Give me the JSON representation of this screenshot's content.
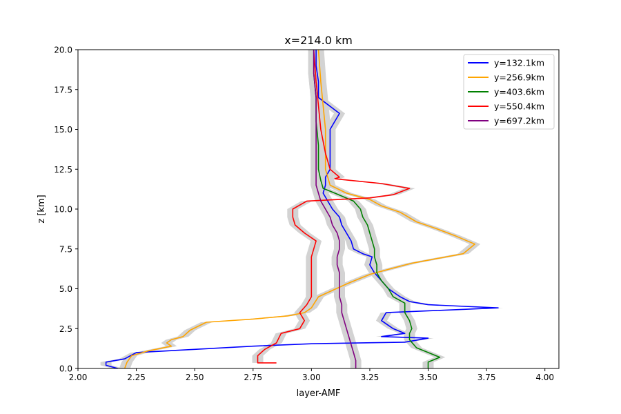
{
  "chart_data": {
    "type": "line",
    "title": "x=214.0 km",
    "xlabel": "layer-AMF",
    "ylabel": "z [km]",
    "xlim": [
      2.0,
      4.06
    ],
    "ylim": [
      0.0,
      20.0
    ],
    "xticks": [
      "2.00",
      "2.25",
      "2.50",
      "2.75",
      "3.00",
      "3.25",
      "3.50",
      "3.75",
      "4.00"
    ],
    "yticks": [
      "0.0",
      "2.5",
      "5.0",
      "7.5",
      "10.0",
      "12.5",
      "15.0",
      "17.5",
      "20.0"
    ],
    "grid": false,
    "legend_position": "top-right",
    "uncertainty_band_color": "#d3d3d3",
    "series": [
      {
        "name": "y=132.1km",
        "color": "#0000ff",
        "points": [
          [
            2.17,
            0.0
          ],
          [
            2.12,
            0.2
          ],
          [
            2.12,
            0.4
          ],
          [
            2.2,
            0.6
          ],
          [
            2.25,
            1.0
          ],
          [
            2.5,
            1.2
          ],
          [
            2.75,
            1.4
          ],
          [
            3.0,
            1.55
          ],
          [
            3.4,
            1.65
          ],
          [
            3.5,
            1.9
          ],
          [
            3.3,
            2.0
          ],
          [
            3.4,
            2.2
          ],
          [
            3.35,
            2.5
          ],
          [
            3.3,
            3.0
          ],
          [
            3.32,
            3.5
          ],
          [
            3.8,
            3.8
          ],
          [
            3.5,
            4.0
          ],
          [
            3.42,
            4.2
          ],
          [
            3.38,
            4.5
          ],
          [
            3.33,
            5.0
          ],
          [
            3.3,
            5.5
          ],
          [
            3.27,
            6.0
          ],
          [
            3.25,
            6.5
          ],
          [
            3.26,
            7.0
          ],
          [
            3.22,
            7.2
          ],
          [
            3.18,
            7.5
          ],
          [
            3.17,
            8.0
          ],
          [
            3.15,
            8.5
          ],
          [
            3.13,
            9.0
          ],
          [
            3.12,
            9.5
          ],
          [
            3.09,
            10.0
          ],
          [
            3.07,
            10.5
          ],
          [
            3.05,
            11.0
          ],
          [
            3.06,
            11.5
          ],
          [
            3.06,
            12.0
          ],
          [
            3.08,
            12.5
          ],
          [
            3.08,
            13.0
          ],
          [
            3.08,
            14.0
          ],
          [
            3.08,
            15.0
          ],
          [
            3.12,
            16.0
          ],
          [
            3.03,
            17.0
          ],
          [
            3.03,
            18.0
          ],
          [
            3.02,
            19.0
          ],
          [
            3.02,
            20.0
          ]
        ]
      },
      {
        "name": "y=256.9km",
        "color": "#ffa500",
        "points": [
          [
            2.2,
            0.0
          ],
          [
            2.21,
            0.4
          ],
          [
            2.23,
            0.8
          ],
          [
            2.3,
            1.1
          ],
          [
            2.4,
            1.4
          ],
          [
            2.38,
            1.6
          ],
          [
            2.4,
            1.8
          ],
          [
            2.45,
            2.0
          ],
          [
            2.48,
            2.4
          ],
          [
            2.55,
            2.9
          ],
          [
            2.75,
            3.1
          ],
          [
            2.9,
            3.3
          ],
          [
            2.97,
            3.5
          ],
          [
            3.0,
            3.8
          ],
          [
            3.03,
            4.5
          ],
          [
            3.15,
            5.3
          ],
          [
            3.25,
            5.9
          ],
          [
            3.35,
            6.3
          ],
          [
            3.43,
            6.6
          ],
          [
            3.65,
            7.2
          ],
          [
            3.7,
            7.8
          ],
          [
            3.62,
            8.3
          ],
          [
            3.53,
            8.8
          ],
          [
            3.45,
            9.2
          ],
          [
            3.38,
            9.8
          ],
          [
            3.3,
            10.2
          ],
          [
            3.25,
            10.6
          ],
          [
            3.15,
            11.0
          ],
          [
            3.08,
            11.5
          ],
          [
            3.07,
            12.0
          ],
          [
            3.06,
            12.5
          ],
          [
            3.06,
            13.5
          ],
          [
            3.06,
            15.0
          ],
          [
            3.05,
            16.5
          ],
          [
            3.04,
            18.0
          ],
          [
            3.03,
            20.0
          ]
        ]
      },
      {
        "name": "y=403.6km",
        "color": "#008000",
        "points": [
          [
            3.5,
            0.0
          ],
          [
            3.5,
            0.4
          ],
          [
            3.55,
            0.7
          ],
          [
            3.5,
            1.0
          ],
          [
            3.45,
            1.3
          ],
          [
            3.42,
            1.8
          ],
          [
            3.42,
            2.2
          ],
          [
            3.43,
            2.5
          ],
          [
            3.42,
            3.0
          ],
          [
            3.4,
            3.5
          ],
          [
            3.4,
            3.8
          ],
          [
            3.4,
            4.1
          ],
          [
            3.35,
            4.5
          ],
          [
            3.33,
            5.0
          ],
          [
            3.3,
            5.5
          ],
          [
            3.28,
            6.0
          ],
          [
            3.28,
            6.5
          ],
          [
            3.27,
            7.0
          ],
          [
            3.27,
            7.5
          ],
          [
            3.26,
            8.0
          ],
          [
            3.25,
            8.5
          ],
          [
            3.24,
            9.0
          ],
          [
            3.22,
            9.5
          ],
          [
            3.21,
            10.0
          ],
          [
            3.18,
            10.5
          ],
          [
            3.1,
            11.0
          ],
          [
            3.05,
            11.3
          ],
          [
            3.04,
            11.8
          ],
          [
            3.03,
            12.5
          ],
          [
            3.03,
            14.0
          ],
          [
            3.02,
            15.5
          ],
          [
            3.02,
            17.0
          ],
          [
            3.01,
            18.5
          ],
          [
            3.01,
            20.0
          ]
        ]
      },
      {
        "name": "y=550.4km",
        "color": "#ff0000",
        "points": [
          [
            2.85,
            0.35
          ],
          [
            2.77,
            0.35
          ],
          [
            2.77,
            0.8
          ],
          [
            2.8,
            1.2
          ],
          [
            2.85,
            1.6
          ],
          [
            2.87,
            2.2
          ],
          [
            2.95,
            2.5
          ],
          [
            2.97,
            3.0
          ],
          [
            2.95,
            3.5
          ],
          [
            2.98,
            4.0
          ],
          [
            3.0,
            4.5
          ],
          [
            3.0,
            5.5
          ],
          [
            3.0,
            6.0
          ],
          [
            3.0,
            6.5
          ],
          [
            3.0,
            7.0
          ],
          [
            3.01,
            7.5
          ],
          [
            3.02,
            8.0
          ],
          [
            2.97,
            8.5
          ],
          [
            2.93,
            9.0
          ],
          [
            2.92,
            9.5
          ],
          [
            2.92,
            10.0
          ],
          [
            2.98,
            10.5
          ],
          [
            3.25,
            10.7
          ],
          [
            3.35,
            10.9
          ],
          [
            3.42,
            11.3
          ],
          [
            3.3,
            11.6
          ],
          [
            3.1,
            11.9
          ],
          [
            3.12,
            12.0
          ],
          [
            3.08,
            12.5
          ],
          [
            3.06,
            13.5
          ],
          [
            3.04,
            15.0
          ],
          [
            3.03,
            16.5
          ],
          [
            3.02,
            18.0
          ],
          [
            3.01,
            20.0
          ]
        ]
      },
      {
        "name": "y=697.2km",
        "color": "#800080",
        "points": [
          [
            3.19,
            0.0
          ],
          [
            3.19,
            0.5
          ],
          [
            3.18,
            1.0
          ],
          [
            3.17,
            1.5
          ],
          [
            3.16,
            2.0
          ],
          [
            3.15,
            2.5
          ],
          [
            3.14,
            3.0
          ],
          [
            3.13,
            3.5
          ],
          [
            3.13,
            4.0
          ],
          [
            3.12,
            4.5
          ],
          [
            3.12,
            5.0
          ],
          [
            3.12,
            5.5
          ],
          [
            3.12,
            6.0
          ],
          [
            3.11,
            6.5
          ],
          [
            3.11,
            7.0
          ],
          [
            3.12,
            7.5
          ],
          [
            3.12,
            8.0
          ],
          [
            3.11,
            8.5
          ],
          [
            3.09,
            9.0
          ],
          [
            3.08,
            9.5
          ],
          [
            3.06,
            10.0
          ],
          [
            3.04,
            10.5
          ],
          [
            3.03,
            11.0
          ],
          [
            3.02,
            11.5
          ],
          [
            3.02,
            12.0
          ],
          [
            3.02,
            12.5
          ],
          [
            3.02,
            14.0
          ],
          [
            3.02,
            15.5
          ],
          [
            3.02,
            17.0
          ],
          [
            3.01,
            18.5
          ],
          [
            3.01,
            20.0
          ]
        ]
      }
    ]
  }
}
